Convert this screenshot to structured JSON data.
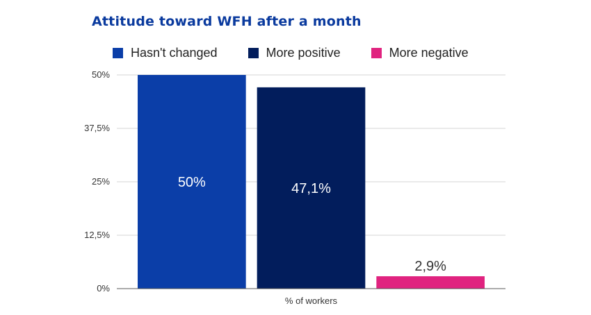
{
  "chart_data": {
    "type": "bar",
    "title": "Attitude toward WFH after a month",
    "xlabel": "% of workers",
    "ylabel": "",
    "ylim": [
      0,
      50
    ],
    "yticks": [
      {
        "value": 0,
        "label": "0%"
      },
      {
        "value": 12.5,
        "label": "12,5%"
      },
      {
        "value": 25,
        "label": "25%"
      },
      {
        "value": 37.5,
        "label": "37,5%"
      },
      {
        "value": 50,
        "label": "50%"
      }
    ],
    "grid": true,
    "legend_position": "top",
    "series": [
      {
        "name": "Hasn't changed",
        "value": 50,
        "label": "50%",
        "color": "#0b3ea8"
      },
      {
        "name": "More positive",
        "value": 47.1,
        "label": "47,1%",
        "color": "#021d5c"
      },
      {
        "name": "More negative",
        "value": 2.9,
        "label": "2,9%",
        "color": "#e0237f"
      }
    ]
  }
}
